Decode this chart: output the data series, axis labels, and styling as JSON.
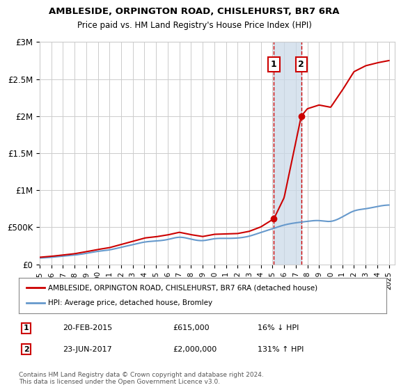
{
  "title1": "AMBLESIDE, ORPINGTON ROAD, CHISLEHURST, BR7 6RA",
  "title2": "Price paid vs. HM Land Registry's House Price Index (HPI)",
  "legend_label_red": "AMBLESIDE, ORPINGTON ROAD, CHISLEHURST, BR7 6RA (detached house)",
  "legend_label_blue": "HPI: Average price, detached house, Bromley",
  "footer": "Contains HM Land Registry data © Crown copyright and database right 2024.\nThis data is licensed under the Open Government Licence v3.0.",
  "transaction1_label": "1",
  "transaction1_date": "20-FEB-2015",
  "transaction1_price": "£615,000",
  "transaction1_hpi": "16% ↓ HPI",
  "transaction1_year": 2015.12,
  "transaction1_value": 615000,
  "transaction2_label": "2",
  "transaction2_date": "23-JUN-2017",
  "transaction2_price": "£2,000,000",
  "transaction2_hpi": "131% ↑ HPI",
  "transaction2_year": 2017.47,
  "transaction2_value": 2000000,
  "ylim": [
    0,
    3000000
  ],
  "xlim": [
    1995,
    2025.5
  ],
  "red_color": "#cc0000",
  "blue_color": "#6699cc",
  "shaded_color": "#c8d8e8",
  "background_color": "#ffffff",
  "grid_color": "#cccccc"
}
